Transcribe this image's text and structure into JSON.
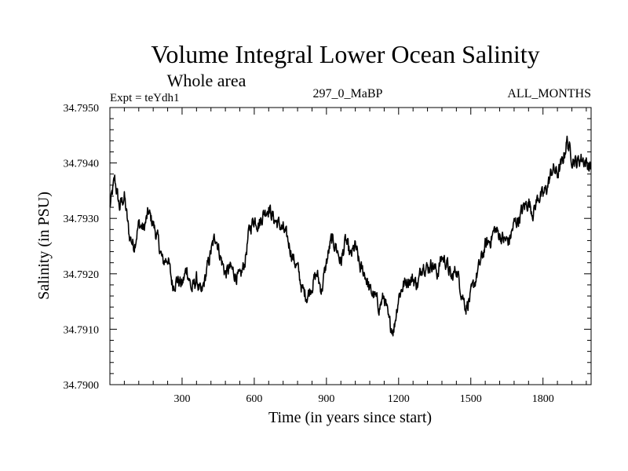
{
  "chart_data": {
    "type": "line",
    "title": "Volume Integral Lower Ocean Salinity",
    "subtitle": "Whole area",
    "left_label": "Expt = teYdh1",
    "center_label": "297_0_MaBP",
    "right_label": "ALL_MONTHS",
    "xlabel": "Time (in years since start)",
    "ylabel": "Salinity (in PSU)",
    "xlim": [
      0,
      2000
    ],
    "ylim": [
      34.79,
      34.795
    ],
    "xticks": [
      300,
      600,
      900,
      1200,
      1500,
      1800
    ],
    "xtick_labels": [
      "300",
      "600",
      "900",
      "1200",
      "1500",
      "1800"
    ],
    "yticks": [
      34.79,
      34.791,
      34.792,
      34.793,
      34.794,
      34.795
    ],
    "ytick_labels": [
      "34.7900",
      "34.7910",
      "34.7920",
      "34.7930",
      "34.7940",
      "34.7950"
    ],
    "series": [
      {
        "name": "teYdh1",
        "x": [
          0,
          20,
          40,
          60,
          80,
          100,
          120,
          140,
          160,
          180,
          200,
          220,
          240,
          260,
          280,
          300,
          320,
          340,
          360,
          380,
          400,
          420,
          440,
          460,
          480,
          500,
          520,
          540,
          560,
          580,
          600,
          620,
          640,
          660,
          680,
          700,
          720,
          740,
          760,
          780,
          800,
          820,
          840,
          860,
          880,
          900,
          920,
          940,
          960,
          980,
          1000,
          1020,
          1040,
          1060,
          1080,
          1100,
          1120,
          1140,
          1160,
          1180,
          1200,
          1220,
          1240,
          1260,
          1280,
          1300,
          1320,
          1340,
          1360,
          1380,
          1400,
          1420,
          1440,
          1460,
          1480,
          1500,
          1520,
          1540,
          1560,
          1580,
          1600,
          1620,
          1640,
          1660,
          1680,
          1700,
          1720,
          1740,
          1760,
          1780,
          1800,
          1820,
          1840,
          1860,
          1880,
          1900,
          1920,
          1940,
          1960,
          1980,
          2000
        ],
        "y": [
          34.7932,
          34.7937,
          34.7932,
          34.7934,
          34.7927,
          34.7925,
          34.7929,
          34.7928,
          34.7931,
          34.7929,
          34.7926,
          34.7922,
          34.7923,
          34.7918,
          34.7919,
          34.7918,
          34.7921,
          34.7917,
          34.7919,
          34.7916,
          34.792,
          34.7924,
          34.7927,
          34.7923,
          34.792,
          34.7921,
          34.792,
          34.7919,
          34.7922,
          34.7928,
          34.793,
          34.7929,
          34.7931,
          34.7932,
          34.793,
          34.7929,
          34.7928,
          34.7926,
          34.7923,
          34.7921,
          34.7917,
          34.7916,
          34.7918,
          34.792,
          34.7917,
          34.7922,
          34.7926,
          34.7925,
          34.7922,
          34.7926,
          34.7923,
          34.7925,
          34.7921,
          34.792,
          34.7917,
          34.7916,
          34.7914,
          34.7916,
          34.7911,
          34.791,
          34.7916,
          34.7918,
          34.7919,
          34.7919,
          34.7918,
          34.7922,
          34.7921,
          34.7922,
          34.792,
          34.7923,
          34.7922,
          34.7919,
          34.7921,
          34.7917,
          34.7914,
          34.7916,
          34.7919,
          34.7922,
          34.7925,
          34.7926,
          34.7928,
          34.7927,
          34.7926,
          34.7926,
          34.7929,
          34.793,
          34.7932,
          34.7933,
          34.7931,
          34.7934,
          34.7934,
          34.7936,
          34.7939,
          34.7938,
          34.794,
          34.7944,
          34.7941,
          34.794,
          34.7941,
          34.794,
          34.7939
        ]
      }
    ]
  }
}
